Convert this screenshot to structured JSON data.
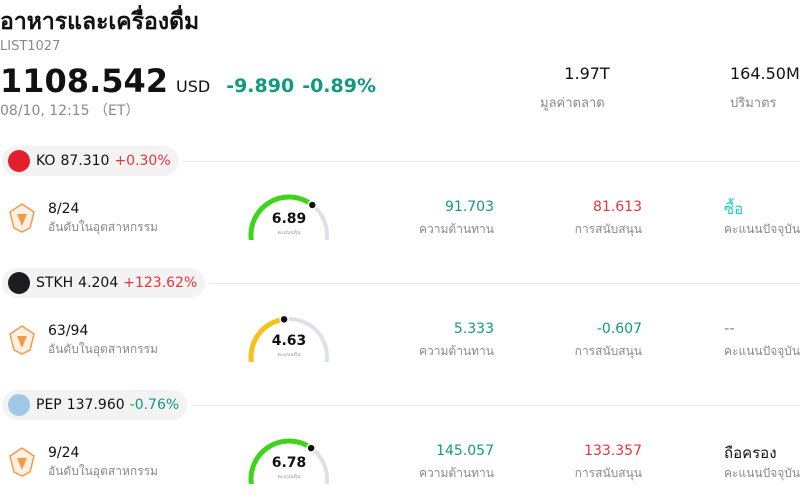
{
  "header": {
    "title": "อาหารและเครื่องดื่ม",
    "code": "LIST1027",
    "price": "1108.542",
    "currency": "USD",
    "change": "-9.890",
    "change_pct": "-0.89%",
    "change_color": "#129a7f",
    "time": "08/10, 12:15 （ET）",
    "stats": [
      {
        "value": "1.97T",
        "label": "มูลค่าตลาด"
      },
      {
        "value": "164.50M",
        "label": "ปริมาตร"
      }
    ]
  },
  "stocks": [
    {
      "ticker": "KO",
      "price": "87.310",
      "change": "+0.30%",
      "change_color": "#e8333f",
      "logo_color": "#e41e2b",
      "rank": "8/24",
      "rank_label": "อันดับในอุตสาหกรรม",
      "score": 6.89,
      "score_color": "#3ed41a",
      "score_label": "คะแนนหุ้น",
      "resistance": "91.703",
      "resistance_color": "#129a7f",
      "resistance_label": "ความต้านทาน",
      "support": "81.613",
      "support_color": "#e8333f",
      "support_label": "การสนับสนุน",
      "rating": "ซื้อ",
      "rating_color": "#1ec8c8",
      "rating_label": "คะแนนปัจจุบัน"
    },
    {
      "ticker": "STKH",
      "price": "4.204",
      "change": "+123.62%",
      "change_color": "#e8333f",
      "logo_color": "#1d1d1f",
      "rank": "63/94",
      "rank_label": "อันดับในอุตสาหกรรม",
      "score": 4.63,
      "score_color": "#f8c21a",
      "score_label": "คะแนนหุ้น",
      "resistance": "5.333",
      "resistance_color": "#129a7f",
      "resistance_label": "ความต้านทาน",
      "support": "-0.607",
      "support_color": "#129a7f",
      "support_label": "การสนับสนุน",
      "rating": "--",
      "rating_color": "#888888",
      "rating_label": "คะแนนปัจจุบัน"
    },
    {
      "ticker": "PEP",
      "price": "137.960",
      "change": "-0.76%",
      "change_color": "#129a7f",
      "logo_color": "#9fc7e8",
      "rank": "9/24",
      "rank_label": "อันดับในอุตสาหกรรม",
      "score": 6.78,
      "score_color": "#3ed41a",
      "score_label": "คะแนนหุ้น",
      "resistance": "145.057",
      "resistance_color": "#129a7f",
      "resistance_label": "ความต้านทาน",
      "support": "133.357",
      "support_color": "#e8333f",
      "support_label": "การสนับสนุน",
      "rating": "ถือครอง",
      "rating_color": "#111111",
      "rating_label": "คะแนนปัจจุบัน"
    }
  ]
}
